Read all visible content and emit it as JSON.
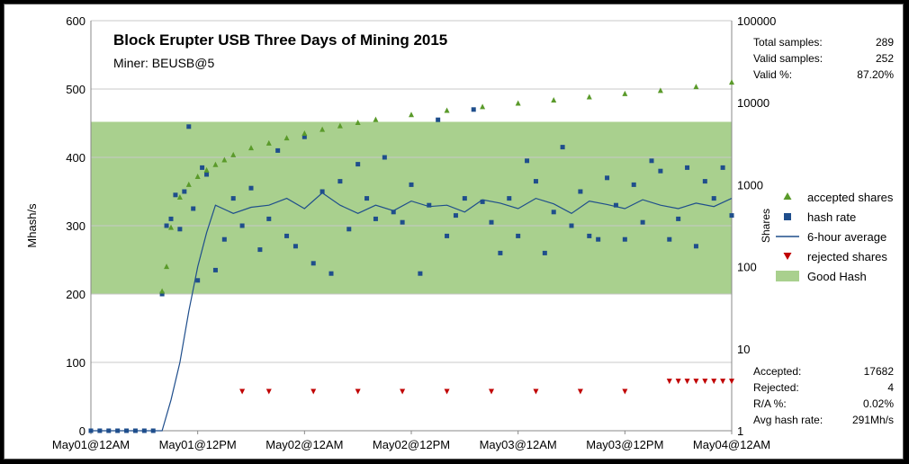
{
  "chart_data": {
    "type": "scatter",
    "title": "Block Erupter USB Three Days of Mining 2015",
    "subtitle": "Miner: BEUSB@5",
    "ylabel": "Mhash/s",
    "y2label": "Shares",
    "ylim": [
      0,
      600
    ],
    "y2lim": [
      1,
      100000
    ],
    "y2scale": "log",
    "yticks": [
      "0",
      "100",
      "200",
      "300",
      "400",
      "500",
      "600"
    ],
    "y2ticks": [
      "1",
      "10",
      "100",
      "1000",
      "10000",
      "100000"
    ],
    "xticks": [
      "May01@12AM",
      "May01@12PM",
      "May02@12AM",
      "May02@12PM",
      "May03@12AM",
      "May03@12PM",
      "May04@12AM"
    ],
    "xlim_hours": [
      0,
      72
    ],
    "grid": true,
    "legend_position": "right",
    "good_hash_band": [
      200,
      452
    ],
    "series": [
      {
        "name": "accepted shares",
        "marker": "triangle-up",
        "color": "#5a9a2a",
        "axis": "y2",
        "x": [
          8,
          8.5,
          9,
          10,
          11,
          12,
          13,
          14,
          15,
          16,
          18,
          20,
          22,
          24,
          26,
          28,
          30,
          32,
          36,
          40,
          44,
          48,
          52,
          56,
          60,
          64,
          68,
          72
        ],
        "y": [
          50,
          100,
          300,
          700,
          1000,
          1250,
          1500,
          1750,
          2000,
          2300,
          2800,
          3200,
          3700,
          4200,
          4700,
          5200,
          5700,
          6200,
          7100,
          8000,
          8900,
          9800,
          10700,
          11700,
          12800,
          14000,
          15600,
          17682
        ]
      },
      {
        "name": "hash rate",
        "marker": "square",
        "color": "#1f4e8c",
        "axis": "y",
        "x": [
          0,
          1,
          2,
          3,
          4,
          5,
          6,
          7,
          8,
          8.5,
          9,
          9.5,
          10,
          10.5,
          11,
          11.5,
          12,
          12.5,
          13,
          14,
          15,
          16,
          17,
          18,
          19,
          20,
          21,
          22,
          23,
          24,
          25,
          26,
          27,
          28,
          29,
          30,
          31,
          32,
          33,
          34,
          35,
          36,
          37,
          38,
          39,
          40,
          41,
          42,
          43,
          44,
          45,
          46,
          47,
          48,
          49,
          50,
          51,
          52,
          53,
          54,
          55,
          56,
          57,
          58,
          59,
          60,
          61,
          62,
          63,
          64,
          65,
          66,
          67,
          68,
          69,
          70,
          71,
          72
        ],
        "y": [
          0,
          0,
          0,
          0,
          0,
          0,
          0,
          0,
          200,
          300,
          310,
          345,
          295,
          350,
          445,
          325,
          220,
          385,
          375,
          235,
          280,
          340,
          300,
          355,
          265,
          310,
          410,
          285,
          270,
          430,
          245,
          350,
          230,
          365,
          295,
          390,
          340,
          310,
          400,
          320,
          305,
          360,
          230,
          330,
          455,
          285,
          315,
          340,
          470,
          335,
          305,
          260,
          340,
          285,
          395,
          365,
          260,
          320,
          415,
          300,
          350,
          285,
          280,
          370,
          330,
          280,
          360,
          305,
          395,
          380,
          280,
          310,
          385,
          270,
          365,
          340,
          385,
          315
        ]
      },
      {
        "name": "6-hour average",
        "marker": "line",
        "color": "#1f4e8c",
        "axis": "y",
        "x": [
          0,
          8,
          9,
          10,
          11,
          12,
          13,
          14,
          16,
          18,
          20,
          22,
          24,
          26,
          28,
          30,
          32,
          34,
          36,
          38,
          40,
          42,
          44,
          46,
          48,
          50,
          52,
          54,
          56,
          58,
          60,
          62,
          64,
          66,
          68,
          70,
          72
        ],
        "y": [
          0,
          0,
          45,
          100,
          175,
          240,
          290,
          330,
          318,
          327,
          330,
          340,
          325,
          348,
          330,
          318,
          330,
          322,
          336,
          328,
          330,
          320,
          338,
          333,
          325,
          340,
          332,
          318,
          336,
          331,
          325,
          338,
          330,
          325,
          333,
          328,
          340
        ]
      },
      {
        "name": "rejected shares",
        "marker": "triangle-down",
        "color": "#c00000",
        "axis": "y2",
        "x": [
          17,
          20,
          25,
          30,
          35,
          40,
          45,
          50,
          55,
          60,
          65,
          66,
          67,
          68,
          69,
          70,
          71,
          72
        ],
        "y": [
          3,
          3,
          3,
          3,
          3,
          3,
          3,
          3,
          3,
          3,
          4,
          4,
          4,
          4,
          4,
          4,
          4,
          4
        ]
      },
      {
        "name": "Good Hash",
        "marker": "band",
        "color": "#a9d08e",
        "axis": "y"
      }
    ]
  },
  "stats_top": [
    {
      "label": "Total samples:",
      "value": "289"
    },
    {
      "label": "Valid samples:",
      "value": "252"
    },
    {
      "label": "Valid %:",
      "value": "87.20%"
    }
  ],
  "stats_bottom": [
    {
      "label": "Accepted:",
      "value": "17682"
    },
    {
      "label": "Rejected:",
      "value": "4"
    },
    {
      "label": "R/A %:",
      "value": "0.02%"
    },
    {
      "label": "Avg hash rate:",
      "value": "291Mh/s"
    }
  ]
}
